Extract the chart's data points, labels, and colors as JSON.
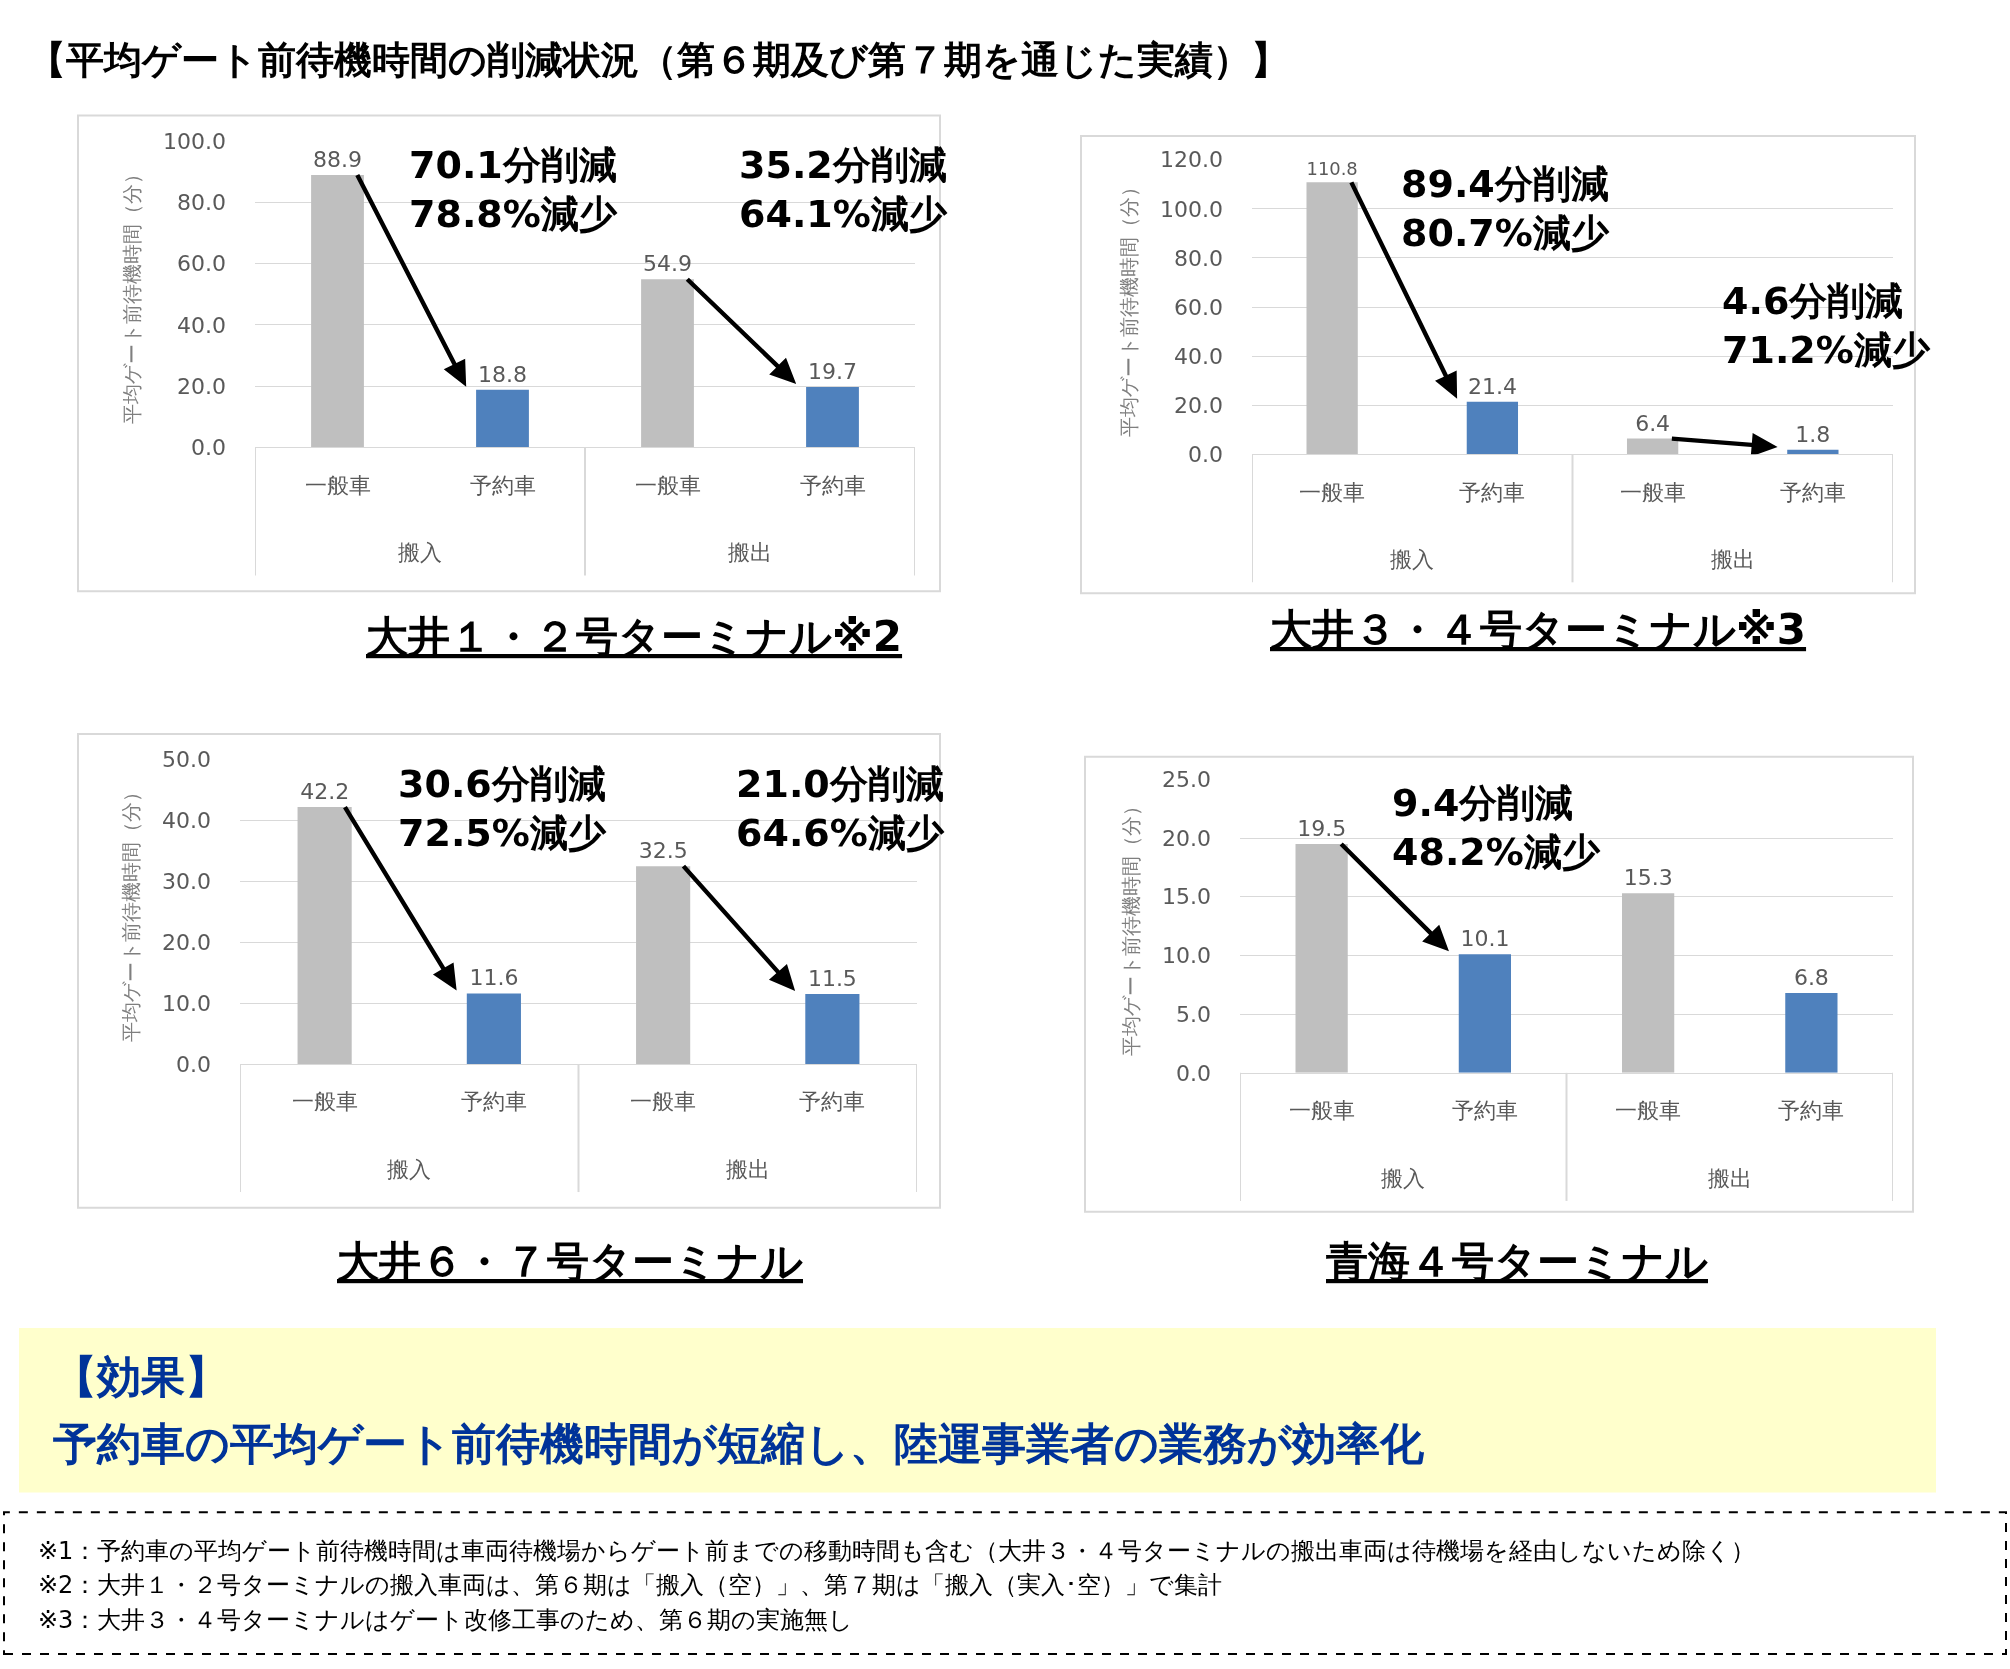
{
  "chart_data": [
    {
      "type": "bar",
      "title": "大井１・２号ターミナル※2",
      "ylabel": "平均ゲート前待機時間（分）",
      "categories": [
        "一般車",
        "予約車",
        "一般車",
        "予約車"
      ],
      "values": [
        88.9,
        18.8,
        54.9,
        19.7
      ],
      "colors": [
        "#bfbfbf",
        "#4f81bd",
        "#bfbfbf",
        "#4f81bd"
      ],
      "data_labels": true,
      "ylim": [
        0,
        100
      ],
      "yticks": [
        {
          "value": 0,
          "label": "0.0"
        },
        {
          "value": 20,
          "label": "20.0"
        },
        {
          "value": 40,
          "label": "40.0"
        },
        {
          "value": 60,
          "label": "60.0"
        },
        {
          "value": 80,
          "label": "80.0"
        },
        {
          "value": 100,
          "label": "100.0"
        }
      ],
      "grid": "y",
      "annotations": [
        "搬入",
        "搬出",
        "70.1分削減\n78.8%減少",
        "35.2分削減\n64.1%減少"
      ]
    },
    {
      "type": "bar",
      "title": "大井３・４号ターミナル※3",
      "ylabel": "平均ゲート前待機時間（分）",
      "categories": [
        "一般車",
        "予約車",
        "一般車",
        "予約車"
      ],
      "values": [
        110.8,
        21.4,
        6.4,
        1.8
      ],
      "colors": [
        "#bfbfbf",
        "#4f81bd",
        "#bfbfbf",
        "#4f81bd"
      ],
      "data_labels": true,
      "ylim": [
        0,
        120
      ],
      "yticks": [
        {
          "value": 0,
          "label": "0.0"
        },
        {
          "value": 20,
          "label": "20.0"
        },
        {
          "value": 40,
          "label": "40.0"
        },
        {
          "value": 60,
          "label": "60.0"
        },
        {
          "value": 80,
          "label": "80.0"
        },
        {
          "value": 100,
          "label": "100.0"
        },
        {
          "value": 120,
          "label": "120.0"
        }
      ],
      "grid": "y",
      "annotations": [
        "搬入",
        "搬出",
        "89.4分削減\n80.7%減少",
        "4.6分削減\n71.2%減少"
      ]
    },
    {
      "type": "bar",
      "title": "大井６・７号ターミナル",
      "ylabel": "平均ゲート前待機時間（分）",
      "categories": [
        "一般車",
        "予約車",
        "一般車",
        "予約車"
      ],
      "values": [
        42.2,
        11.6,
        32.5,
        11.5
      ],
      "colors": [
        "#bfbfbf",
        "#4f81bd",
        "#bfbfbf",
        "#4f81bd"
      ],
      "data_labels": true,
      "ylim": [
        0,
        50
      ],
      "yticks": [
        {
          "value": 0,
          "label": "0.0"
        },
        {
          "value": 10,
          "label": "10.0"
        },
        {
          "value": 20,
          "label": "20.0"
        },
        {
          "value": 30,
          "label": "30.0"
        },
        {
          "value": 40,
          "label": "40.0"
        },
        {
          "value": 50,
          "label": "50.0"
        }
      ],
      "grid": "y",
      "annotations": [
        "搬入",
        "搬出",
        "30.6分削減\n72.5%減少",
        "21.0分削減\n64.6%減少"
      ]
    },
    {
      "type": "bar",
      "title": "青海４号ターミナル",
      "ylabel": "平均ゲート前待機時間（分）",
      "categories": [
        "一般車",
        "予約車",
        "一般車",
        "予約車"
      ],
      "values": [
        19.5,
        10.1,
        15.3,
        6.8
      ],
      "colors": [
        "#bfbfbf",
        "#4f81bd",
        "#bfbfbf",
        "#4f81bd"
      ],
      "data_labels": true,
      "ylim": [
        0,
        25
      ],
      "yticks": [
        {
          "value": 0,
          "label": "0.0"
        },
        {
          "value": 5,
          "label": "5.0"
        },
        {
          "value": 10,
          "label": "10.0"
        },
        {
          "value": 15,
          "label": "15.0"
        },
        {
          "value": 20,
          "label": "20.0"
        },
        {
          "value": 25,
          "label": "25.0"
        }
      ],
      "grid": "y",
      "annotations": [
        "搬入",
        "搬出",
        "9.4分削減\n48.2%減少"
      ]
    },
    {
      "type": "other",
      "title": "【平均ゲート前待機時間の削減状況（第６期及び第７期を通じた実績）】",
      "annotations": [
        "【効果】",
        "予約車の平均ゲート前待機時間が短縮し、陸運事業者の業務が効率化",
        "※1：予約車の平均ゲート前待機時間は車両待機場からゲート前までの移動時間も含む（大井３・４号ターミナルの搬出車両は待機場を経由しないため除く）",
        "※2：大井１・２号ターミナルの搬入車両は、第６期は「搬入（空）」、第７期は「搬入（実入･空）」で集計",
        "※3：大井３・４号ターミナルはゲート改修工事のため、第６期の実施無し"
      ]
    }
  ]
}
